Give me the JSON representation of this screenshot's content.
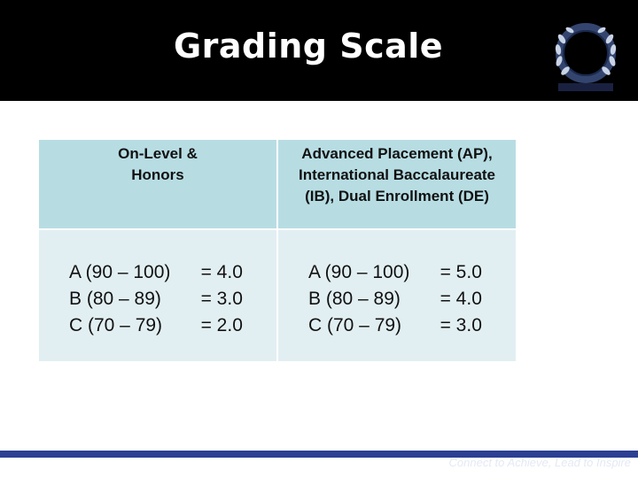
{
  "slide": {
    "title": "Grading Scale",
    "logo_text": "",
    "tagline": "Connect to Achieve, Lead to Inspire"
  },
  "table": {
    "headers": [
      "On-Level & Honors",
      "Advanced Placement (AP), International Baccalaureate (IB), Dual Enrollment (DE)"
    ],
    "on_level": [
      {
        "range": "A (90 – 100)",
        "points": "= 4.0"
      },
      {
        "range": "B (80 – 89)",
        "points": "= 3.0"
      },
      {
        "range": "C (70 – 79)",
        "points": "= 2.0"
      }
    ],
    "advanced": [
      {
        "range": "A (90 – 100)",
        "points": "= 5.0"
      },
      {
        "range": "B (80 – 89)",
        "points": "= 4.0"
      },
      {
        "range": "C (70 – 79)",
        "points": "= 3.0"
      }
    ]
  },
  "colors": {
    "header_bg": "#000000",
    "table_header": "#b7dde3",
    "table_body": "#e2eff2",
    "footer_bar": "#2b3f93"
  }
}
